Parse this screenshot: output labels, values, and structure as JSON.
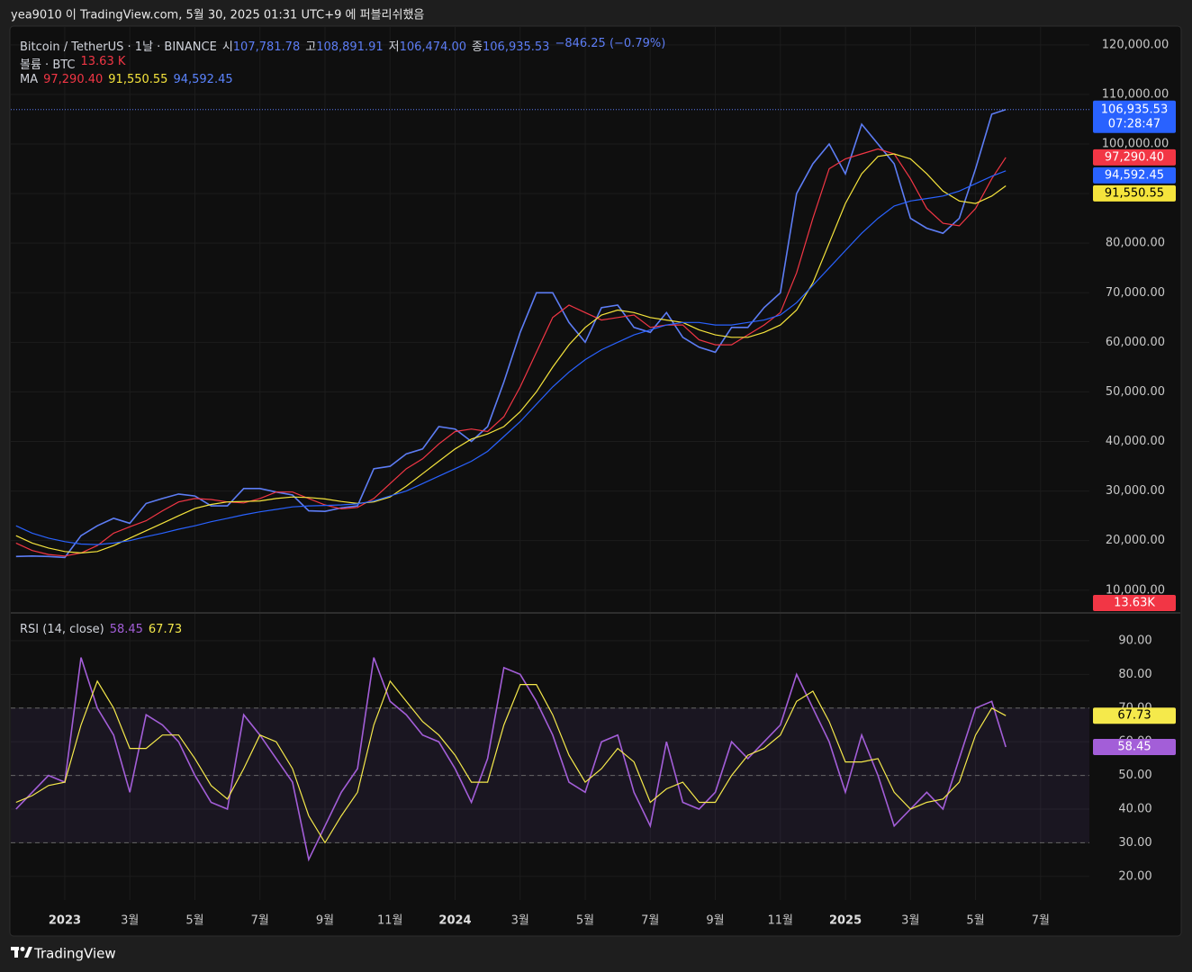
{
  "header": {
    "text": "yea9010 이 TradingView.com, 5월 30, 2025 01:31 UTC+9 에 퍼블리쉬했음"
  },
  "footer": {
    "brand": "TradingView"
  },
  "chart_data": [
    {
      "type": "line",
      "ohlc": [
        {
          "label": "시",
          "value": "107,781.78"
        },
        {
          "label": "고",
          "value": "108,891.91"
        },
        {
          "label": "저",
          "value": "106,474.00"
        },
        {
          "label": "종",
          "value": "106,935.53"
        }
      ],
      "change": "−846.25 (−0.79%)",
      "volume": {
        "label": "볼륨 · BTC",
        "value": "13.63 K",
        "badge": "13.63K"
      },
      "ma_label": "MA",
      "countdown": "07:28:47",
      "grid": true,
      "xlim": [
        -1.66,
        31.5
      ],
      "ylim": [
        5600,
        123600
      ],
      "yticks": [
        {
          "value": 10000,
          "label": "10,000.00"
        },
        {
          "value": 20000,
          "label": "20,000.00"
        },
        {
          "value": 30000,
          "label": "30,000.00"
        },
        {
          "value": 40000,
          "label": "40,000.00"
        },
        {
          "value": 50000,
          "label": "50,000.00"
        },
        {
          "value": 60000,
          "label": "60,000.00"
        },
        {
          "value": 70000,
          "label": "70,000.00"
        },
        {
          "value": 80000,
          "label": "80,000.00"
        },
        {
          "value": 90000,
          "label": "90,000.00"
        },
        {
          "value": 100000,
          "label": "100,000.00"
        },
        {
          "value": 110000,
          "label": "110,000.00"
        },
        {
          "value": 120000,
          "label": "120,000.00"
        }
      ],
      "x": [
        -1.5,
        -1,
        -0.5,
        0,
        0.5,
        1,
        1.5,
        2,
        2.5,
        3,
        3.5,
        4,
        4.5,
        5,
        5.5,
        6,
        6.5,
        7,
        7.5,
        8,
        8.5,
        9,
        9.5,
        10,
        10.5,
        11,
        11.5,
        12,
        12.5,
        13,
        13.5,
        14,
        14.5,
        15,
        15.5,
        16,
        16.5,
        17,
        17.5,
        18,
        18.5,
        19,
        19.5,
        20,
        20.5,
        21,
        21.5,
        22,
        22.5,
        23,
        23.5,
        24,
        24.5,
        25,
        25.5,
        26,
        26.5,
        27,
        27.5,
        28,
        28.5,
        28.93
      ],
      "series": [
        {
          "name": "Bitcoin / TetherUS · 1날 · BINANCE",
          "color": "#5d7df5",
          "last_label": "106,935.53",
          "values": [
            16800,
            16900,
            16800,
            16600,
            21000,
            23000,
            24500,
            23500,
            27500,
            28500,
            29400,
            29000,
            27000,
            27000,
            30500,
            30500,
            29800,
            29200,
            26000,
            25900,
            26600,
            27000,
            34500,
            35000,
            37500,
            38500,
            43000,
            42500,
            40000,
            43000,
            52000,
            62000,
            70000,
            70000,
            64000,
            60000,
            67000,
            67500,
            63000,
            62000,
            66000,
            61000,
            59000,
            58000,
            63000,
            63000,
            67000,
            70000,
            90000,
            96000,
            100000,
            94000,
            104000,
            100000,
            96000,
            85000,
            83000,
            82000,
            85000,
            95000,
            106000,
            106935.53
          ]
        },
        {
          "color": "#f23645",
          "last_label": "97,290.40",
          "values": [
            19500,
            18000,
            17200,
            16900,
            17500,
            19000,
            21500,
            22800,
            24000,
            26000,
            27800,
            28500,
            28300,
            27800,
            27600,
            28500,
            29800,
            29800,
            28500,
            27200,
            26400,
            26700,
            28500,
            31500,
            34500,
            36500,
            39500,
            42000,
            42500,
            42000,
            45000,
            51000,
            58000,
            65000,
            67500,
            66000,
            64500,
            65000,
            65500,
            63000,
            63500,
            63500,
            60500,
            59500,
            59500,
            61500,
            63500,
            66000,
            74000,
            85000,
            95000,
            97000,
            98000,
            99000,
            98000,
            93000,
            87000,
            84000,
            83500,
            87000,
            93000,
            97290.4
          ]
        },
        {
          "color": "#f5e43c",
          "last_label": "91,550.55",
          "values": [
            21000,
            19500,
            18500,
            17800,
            17500,
            17800,
            19000,
            20500,
            22000,
            23500,
            25000,
            26500,
            27300,
            27800,
            27900,
            28000,
            28500,
            28800,
            28700,
            28400,
            27900,
            27500,
            27800,
            28800,
            31000,
            33500,
            36000,
            38500,
            40500,
            41500,
            43000,
            46000,
            50000,
            55000,
            59500,
            63000,
            65500,
            66500,
            66000,
            65000,
            64500,
            64000,
            62500,
            61500,
            61000,
            61000,
            62000,
            63500,
            66500,
            72000,
            80000,
            88000,
            94000,
            97500,
            98000,
            97000,
            94000,
            90500,
            88500,
            88000,
            89500,
            91550.55
          ]
        },
        {
          "color": "#2962ff",
          "last_label": "94,592.45",
          "values": [
            23000,
            21500,
            20500,
            19800,
            19300,
            19200,
            19500,
            20000,
            20800,
            21500,
            22300,
            23000,
            23800,
            24500,
            25200,
            25800,
            26300,
            26800,
            27000,
            27100,
            27200,
            27400,
            28000,
            29000,
            30000,
            31500,
            33000,
            34500,
            36000,
            38000,
            41000,
            44000,
            47500,
            51000,
            54000,
            56500,
            58500,
            60000,
            61500,
            62500,
            63500,
            64000,
            64000,
            63500,
            63500,
            64000,
            64500,
            65500,
            68000,
            71500,
            75000,
            78500,
            82000,
            85000,
            87500,
            88500,
            89000,
            89500,
            90500,
            92000,
            93500,
            94592.45
          ]
        }
      ]
    },
    {
      "type": "line",
      "title": "RSI (14, close)",
      "grid": true,
      "band": [
        30,
        70
      ],
      "midline": 50,
      "xlim": [
        -1.66,
        31.5
      ],
      "xticks": [
        {
          "value": 0,
          "label": "2023"
        },
        {
          "value": 2,
          "label": "3월"
        },
        {
          "value": 4,
          "label": "5월"
        },
        {
          "value": 6,
          "label": "7월"
        },
        {
          "value": 8,
          "label": "9월"
        },
        {
          "value": 10,
          "label": "11월"
        },
        {
          "value": 12,
          "label": "2024"
        },
        {
          "value": 14,
          "label": "3월"
        },
        {
          "value": 16,
          "label": "5월"
        },
        {
          "value": 18,
          "label": "7월"
        },
        {
          "value": 20,
          "label": "9월"
        },
        {
          "value": 22,
          "label": "11월"
        },
        {
          "value": 24,
          "label": "2025"
        },
        {
          "value": 26,
          "label": "3월"
        },
        {
          "value": 28,
          "label": "5월"
        },
        {
          "value": 30,
          "label": "7월"
        }
      ],
      "ylim": [
        13,
        98
      ],
      "yticks": [
        {
          "value": 20,
          "label": "20.00"
        },
        {
          "value": 30,
          "label": "30.00"
        },
        {
          "value": 40,
          "label": "40.00"
        },
        {
          "value": 50,
          "label": "50.00"
        },
        {
          "value": 60,
          "label": "60.00"
        },
        {
          "value": 70,
          "label": "70.00"
        },
        {
          "value": 80,
          "label": "80.00"
        },
        {
          "value": 90,
          "label": "90.00"
        }
      ],
      "x": [
        -1.5,
        -1,
        -0.5,
        0,
        0.5,
        1,
        1.5,
        2,
        2.5,
        3,
        3.5,
        4,
        4.5,
        5,
        5.5,
        6,
        6.5,
        7,
        7.5,
        8,
        8.5,
        9,
        9.5,
        10,
        10.5,
        11,
        11.5,
        12,
        12.5,
        13,
        13.5,
        14,
        14.5,
        15,
        15.5,
        16,
        16.5,
        17,
        17.5,
        18,
        18.5,
        19,
        19.5,
        20,
        20.5,
        21,
        21.5,
        22,
        22.5,
        23,
        23.5,
        24,
        24.5,
        25,
        25.5,
        26,
        26.5,
        27,
        27.5,
        28,
        28.5,
        28.93
      ],
      "series": [
        {
          "color": "#a35ed8",
          "last_label": "58.45",
          "values": [
            40,
            45,
            50,
            48,
            85,
            70,
            62,
            45,
            68,
            65,
            60,
            50,
            42,
            40,
            68,
            62,
            55,
            48,
            25,
            35,
            45,
            52,
            85,
            72,
            68,
            62,
            60,
            52,
            42,
            55,
            82,
            80,
            72,
            62,
            48,
            45,
            60,
            62,
            45,
            35,
            60,
            42,
            40,
            45,
            60,
            55,
            60,
            65,
            80,
            70,
            60,
            45,
            62,
            50,
            35,
            40,
            45,
            40,
            55,
            70,
            72,
            58.45
          ]
        },
        {
          "color": "#f5e94b",
          "last_label": "67.73",
          "values": [
            42,
            44,
            47,
            48,
            65,
            78,
            70,
            58,
            58,
            62,
            62,
            55,
            47,
            43,
            52,
            62,
            60,
            52,
            38,
            30,
            38,
            45,
            65,
            78,
            72,
            66,
            62,
            56,
            48,
            48,
            65,
            77,
            77,
            68,
            56,
            48,
            52,
            58,
            54,
            42,
            46,
            48,
            42,
            42,
            50,
            56,
            58,
            62,
            72,
            75,
            66,
            54,
            54,
            55,
            45,
            40,
            42,
            43,
            48,
            62,
            70,
            67.73
          ]
        }
      ]
    }
  ]
}
